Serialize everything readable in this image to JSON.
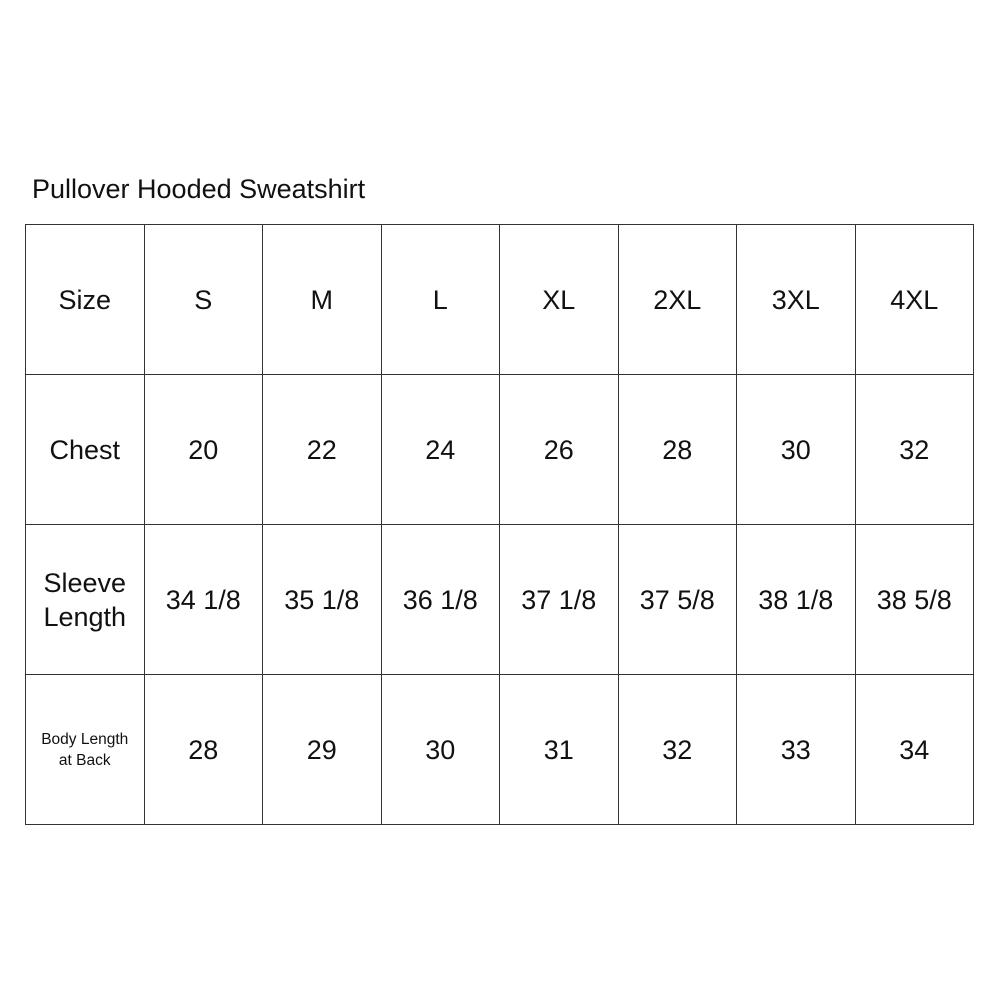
{
  "title": "Pullover Hooded Sweatshirt",
  "table": {
    "rows": [
      {
        "label": "Size",
        "label_lines": [
          "Size"
        ],
        "values": [
          "S",
          "M",
          "L",
          "XL",
          "2XL",
          "3XL",
          "4XL"
        ]
      },
      {
        "label": "Chest",
        "label_lines": [
          "Chest"
        ],
        "values": [
          "20",
          "22",
          "24",
          "26",
          "28",
          "30",
          "32"
        ]
      },
      {
        "label": "Sleeve Length",
        "label_lines": [
          "Sleeve",
          "Length"
        ],
        "values": [
          "34 1/8",
          "35 1/8",
          "36 1/8",
          "37 1/8",
          "37 5/8",
          "38 1/8",
          "38 5/8"
        ]
      },
      {
        "label": "Body Length at Back",
        "label_lines": [
          "Body Length",
          "at Back"
        ],
        "small_label": true,
        "values": [
          "28",
          "29",
          "30",
          "31",
          "32",
          "33",
          "34"
        ]
      }
    ]
  }
}
